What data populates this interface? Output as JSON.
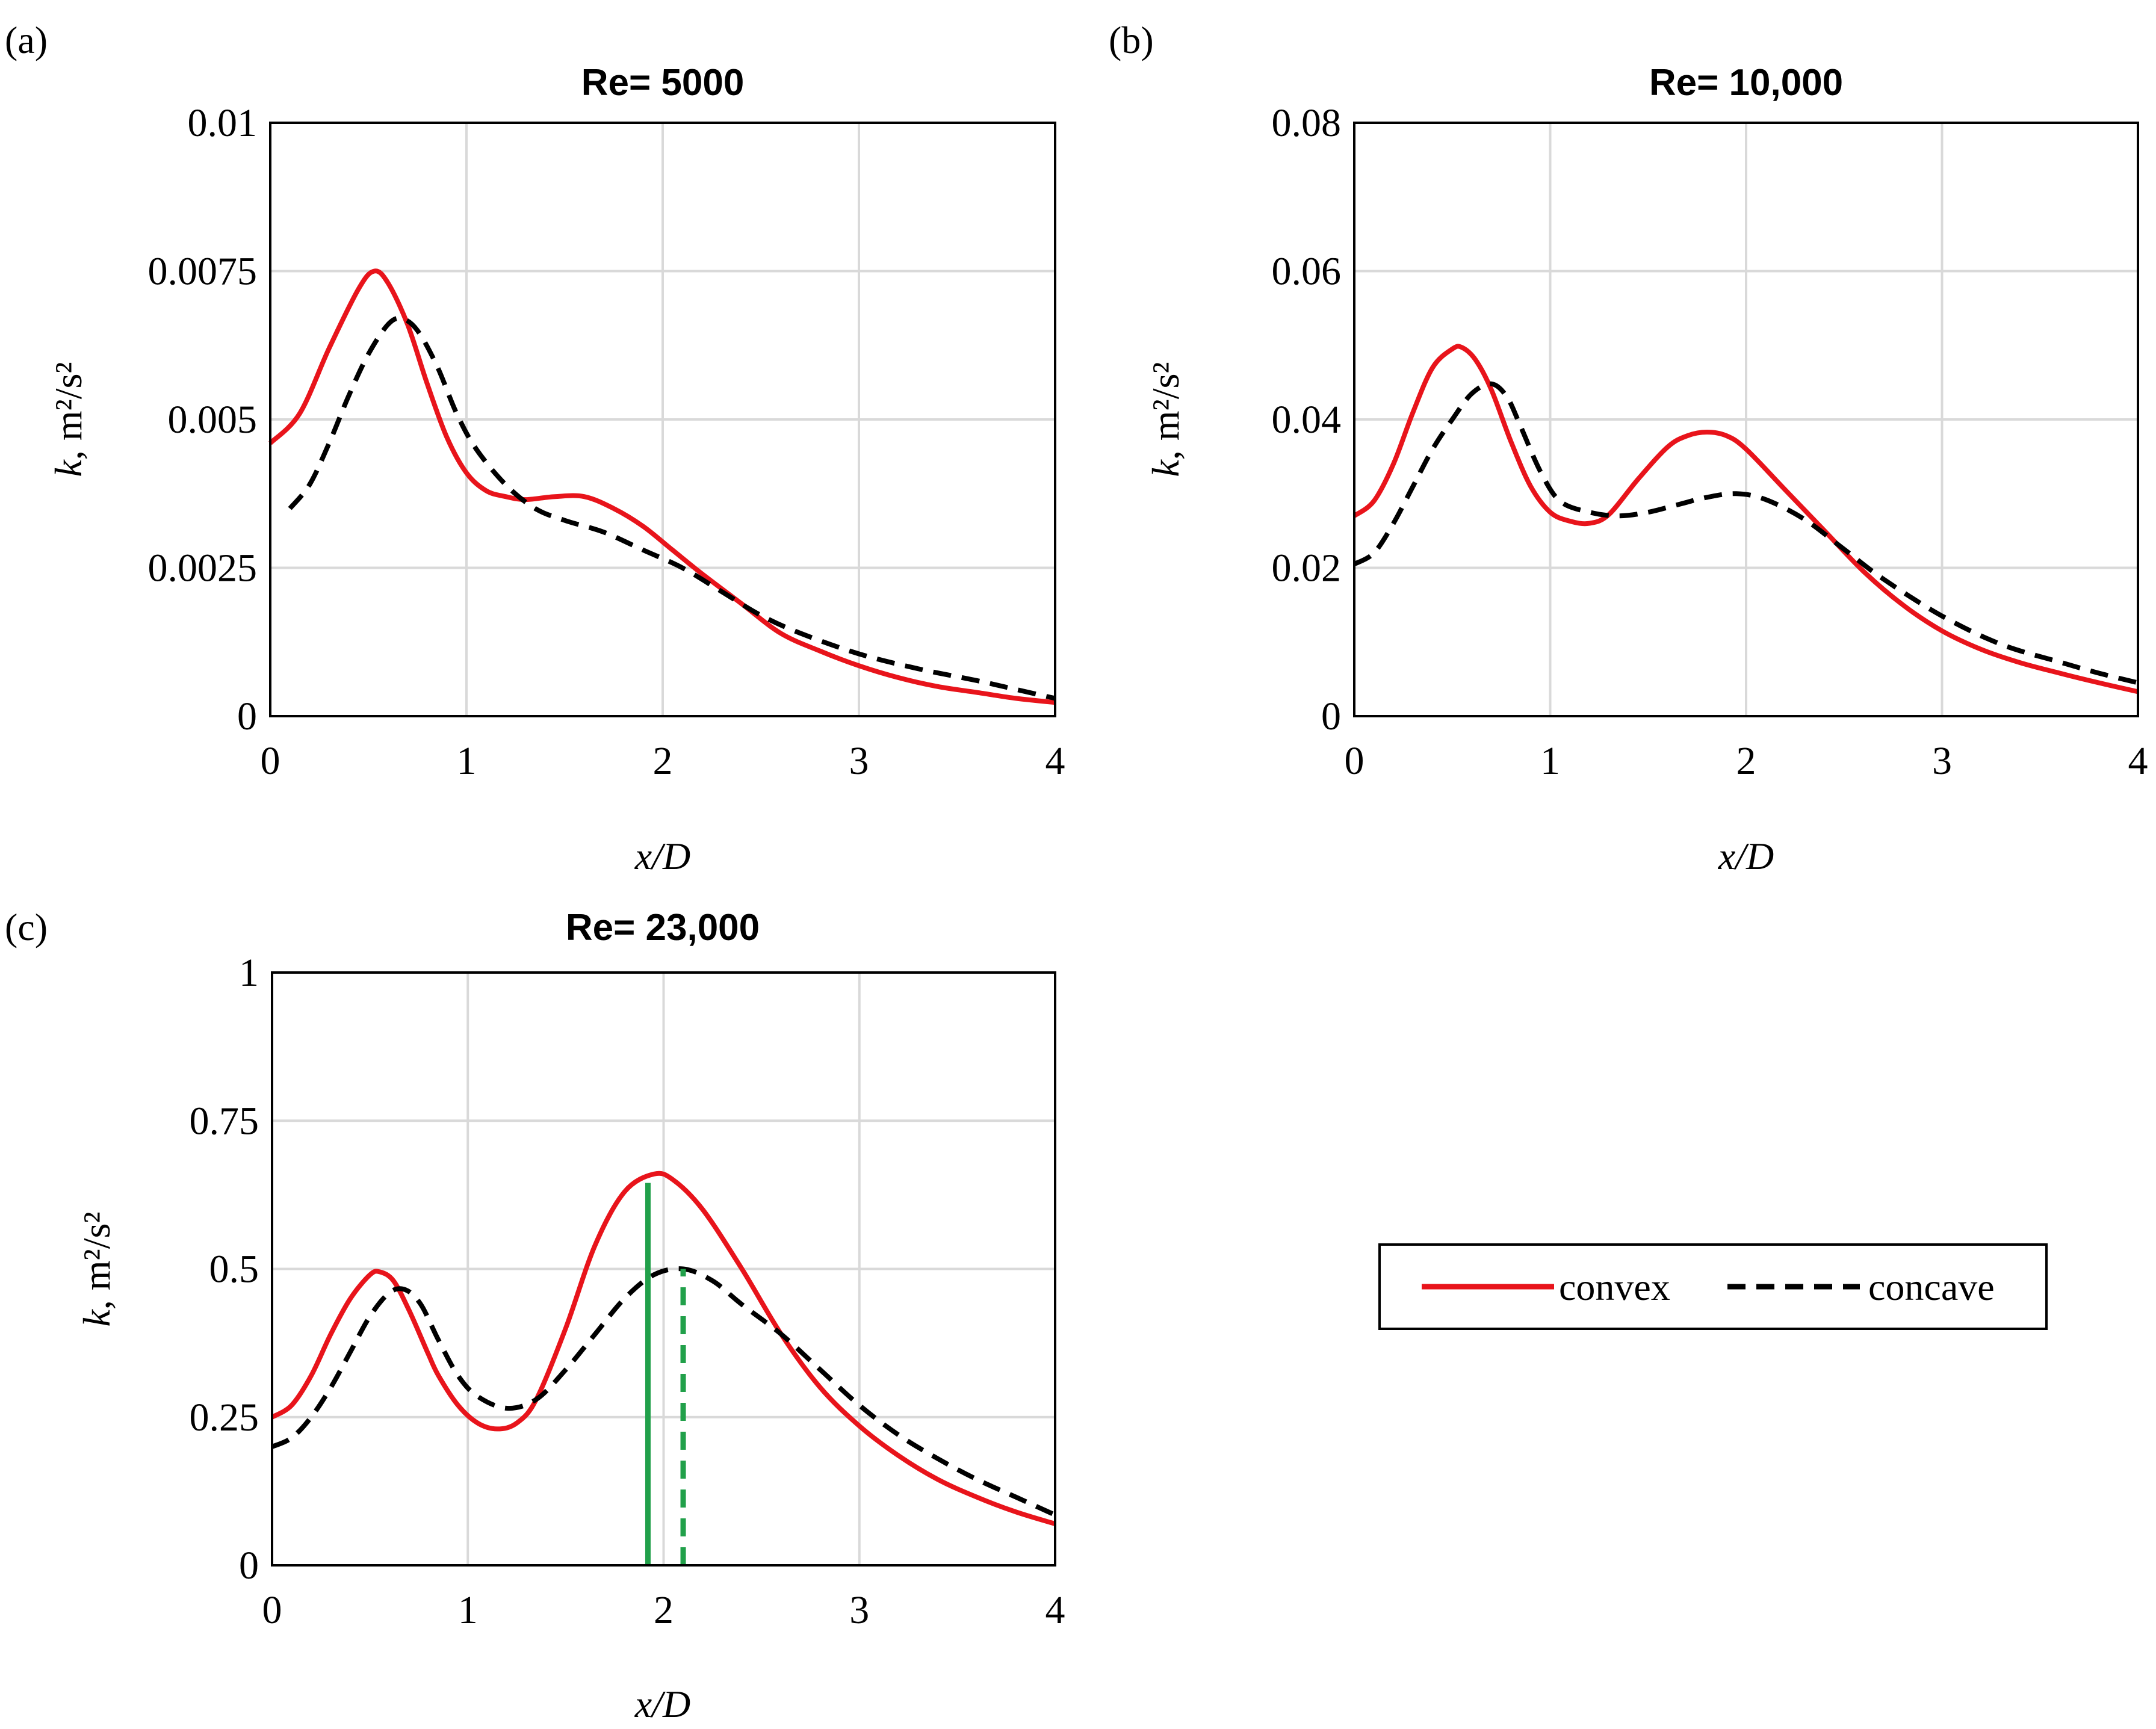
{
  "legend": {
    "entries": [
      {
        "label": "convex",
        "color": "#e8141b",
        "style": "solid"
      },
      {
        "label": "concave",
        "color": "#000000",
        "style": "dashed"
      }
    ]
  },
  "colors": {
    "convex": "#e8141b",
    "concave": "#000000",
    "marker": "#21a04a",
    "grid": "#d9d9d9"
  },
  "chart_data": [
    {
      "panel_label": "(a)",
      "type": "line",
      "title": "Re= 5000",
      "xlabel": "x/D",
      "ylabel_italic": "k",
      "ylabel_rest": ", m²/s²",
      "xlim": [
        0,
        4
      ],
      "ylim": [
        0,
        0.01
      ],
      "xticks": [
        0,
        1,
        2,
        3,
        4
      ],
      "xtick_labels": [
        "0",
        "1",
        "2",
        "3",
        "4"
      ],
      "yticks": [
        0,
        0.0025,
        0.005,
        0.0075,
        0.01
      ],
      "ytick_labels": [
        "0",
        "0.0025",
        "0.005",
        "0.0075",
        "0.01"
      ],
      "grid": true,
      "series": [
        {
          "name": "convex",
          "x": [
            0,
            0.15,
            0.3,
            0.45,
            0.53,
            0.6,
            0.7,
            0.8,
            0.9,
            1.0,
            1.1,
            1.2,
            1.3,
            1.45,
            1.6,
            1.75,
            1.9,
            2.05,
            2.2,
            2.4,
            2.6,
            2.8,
            3.0,
            3.2,
            3.4,
            3.6,
            3.8,
            4.0
          ],
          "y": [
            0.0046,
            0.0051,
            0.0062,
            0.0072,
            0.0075,
            0.0073,
            0.0066,
            0.0056,
            0.0047,
            0.0041,
            0.0038,
            0.0037,
            0.00365,
            0.0037,
            0.0037,
            0.0035,
            0.0032,
            0.0028,
            0.0024,
            0.0019,
            0.0014,
            0.0011,
            0.00085,
            0.00065,
            0.0005,
            0.0004,
            0.0003,
            0.00023
          ]
        },
        {
          "name": "concave",
          "x": [
            0.1,
            0.2,
            0.3,
            0.4,
            0.5,
            0.6,
            0.67,
            0.75,
            0.85,
            0.95,
            1.05,
            1.2,
            1.35,
            1.5,
            1.7,
            1.9,
            2.1,
            2.3,
            2.5,
            2.7,
            3.0,
            3.3,
            3.6,
            3.8,
            4.0
          ],
          "y": [
            0.0035,
            0.0039,
            0.0046,
            0.0054,
            0.0061,
            0.0066,
            0.0067,
            0.0065,
            0.0059,
            0.0051,
            0.0045,
            0.0039,
            0.0035,
            0.0033,
            0.0031,
            0.0028,
            0.0025,
            0.0021,
            0.0017,
            0.0014,
            0.00105,
            0.0008,
            0.0006,
            0.00045,
            0.0003
          ]
        }
      ]
    },
    {
      "panel_label": "(b)",
      "type": "line",
      "title": "Re= 10,000",
      "xlabel": "x/D",
      "ylabel_italic": "k",
      "ylabel_rest": ", m²/s²",
      "xlim": [
        0,
        4
      ],
      "ylim": [
        0,
        0.08
      ],
      "xticks": [
        0,
        1,
        2,
        3,
        4
      ],
      "xtick_labels": [
        "0",
        "1",
        "2",
        "3",
        "4"
      ],
      "yticks": [
        0,
        0.02,
        0.04,
        0.06,
        0.08
      ],
      "ytick_labels": [
        "0",
        "0.02",
        "0.04",
        "0.06",
        "0.08"
      ],
      "grid": true,
      "series": [
        {
          "name": "convex",
          "x": [
            0,
            0.1,
            0.2,
            0.3,
            0.4,
            0.5,
            0.55,
            0.62,
            0.7,
            0.8,
            0.9,
            1.0,
            1.1,
            1.2,
            1.3,
            1.45,
            1.6,
            1.7,
            1.8,
            1.9,
            2.0,
            2.2,
            2.4,
            2.6,
            2.8,
            3.0,
            3.2,
            3.4,
            3.6,
            3.8,
            4.0
          ],
          "y": [
            0.027,
            0.029,
            0.034,
            0.041,
            0.047,
            0.0495,
            0.0497,
            0.048,
            0.044,
            0.037,
            0.031,
            0.0275,
            0.0263,
            0.026,
            0.0272,
            0.032,
            0.0363,
            0.0378,
            0.0383,
            0.0378,
            0.036,
            0.0305,
            0.025,
            0.0195,
            0.015,
            0.0115,
            0.009,
            0.0072,
            0.0058,
            0.0045,
            0.0033
          ]
        },
        {
          "name": "concave",
          "x": [
            0,
            0.1,
            0.2,
            0.3,
            0.4,
            0.5,
            0.6,
            0.7,
            0.78,
            0.85,
            0.95,
            1.05,
            1.2,
            1.35,
            1.5,
            1.65,
            1.8,
            1.95,
            2.1,
            2.3,
            2.5,
            2.7,
            3.0,
            3.3,
            3.6,
            3.8,
            4.0
          ],
          "y": [
            0.0205,
            0.022,
            0.026,
            0.031,
            0.036,
            0.04,
            0.0435,
            0.0448,
            0.043,
            0.039,
            0.033,
            0.029,
            0.0275,
            0.027,
            0.0275,
            0.0285,
            0.0295,
            0.03,
            0.0292,
            0.0265,
            0.0225,
            0.0185,
            0.0135,
            0.0097,
            0.0073,
            0.0058,
            0.0045
          ]
        }
      ]
    },
    {
      "panel_label": "(c)",
      "type": "line",
      "title": "Re= 23,000",
      "xlabel": "x/D",
      "ylabel_italic": "k",
      "ylabel_rest": ", m²/s²",
      "xlim": [
        0,
        4
      ],
      "ylim": [
        0,
        1
      ],
      "xticks": [
        0,
        1,
        2,
        3,
        4
      ],
      "xtick_labels": [
        "0",
        "1",
        "2",
        "3",
        "4"
      ],
      "yticks": [
        0,
        0.25,
        0.5,
        0.75,
        1
      ],
      "ytick_labels": [
        "0",
        "0.25",
        "0.5",
        "0.75",
        "1"
      ],
      "grid": true,
      "series": [
        {
          "name": "convex",
          "x": [
            0,
            0.1,
            0.2,
            0.3,
            0.4,
            0.5,
            0.55,
            0.62,
            0.7,
            0.78,
            0.8,
            0.85,
            0.95,
            1.05,
            1.15,
            1.25,
            1.35,
            1.5,
            1.65,
            1.8,
            1.95,
            2.05,
            2.2,
            2.4,
            2.6,
            2.8,
            3.0,
            3.2,
            3.4,
            3.6,
            3.8,
            4.0
          ],
          "y": [
            0.25,
            0.27,
            0.32,
            0.39,
            0.45,
            0.49,
            0.495,
            0.48,
            0.43,
            0.37,
            0.355,
            0.32,
            0.27,
            0.24,
            0.23,
            0.24,
            0.28,
            0.4,
            0.54,
            0.63,
            0.66,
            0.65,
            0.6,
            0.5,
            0.39,
            0.3,
            0.235,
            0.185,
            0.145,
            0.115,
            0.09,
            0.07
          ]
        },
        {
          "name": "concave",
          "x": [
            0,
            0.1,
            0.2,
            0.3,
            0.4,
            0.5,
            0.6,
            0.68,
            0.76,
            0.85,
            0.95,
            1.05,
            1.2,
            1.35,
            1.5,
            1.65,
            1.8,
            1.95,
            2.1,
            2.25,
            2.4,
            2.6,
            2.8,
            3.0,
            3.2,
            3.4,
            3.6,
            3.8,
            4.0
          ],
          "y": [
            0.2,
            0.215,
            0.25,
            0.3,
            0.36,
            0.42,
            0.46,
            0.465,
            0.44,
            0.38,
            0.32,
            0.285,
            0.265,
            0.28,
            0.33,
            0.39,
            0.45,
            0.49,
            0.5,
            0.48,
            0.44,
            0.39,
            0.33,
            0.27,
            0.22,
            0.18,
            0.145,
            0.115,
            0.085
          ]
        }
      ],
      "vertical_markers": [
        {
          "x": 1.92,
          "y_top": 0.645,
          "style": "solid",
          "series": "convex"
        },
        {
          "x": 2.1,
          "y_top": 0.5,
          "style": "dashed",
          "series": "concave"
        }
      ]
    }
  ]
}
